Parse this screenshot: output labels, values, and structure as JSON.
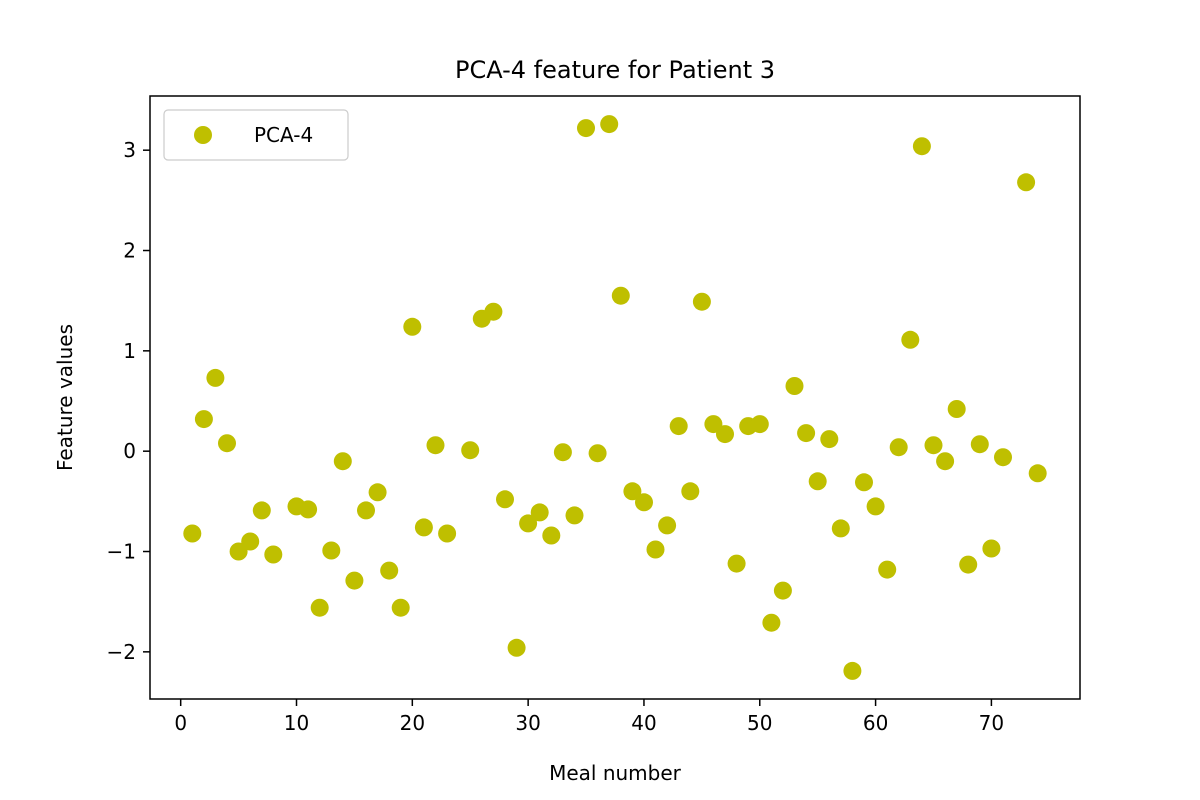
{
  "chart_data": {
    "type": "scatter",
    "title": "PCA-4 feature for Patient 3",
    "xlabel": "Meal number",
    "ylabel": "Feature values",
    "xlim": [
      -2.65,
      77.65
    ],
    "ylim": [
      -2.47,
      3.54
    ],
    "xticks": [
      0,
      10,
      20,
      30,
      40,
      50,
      60,
      70
    ],
    "yticks": [
      -2,
      -1,
      0,
      1,
      2,
      3
    ],
    "ytick_labels": [
      "−2",
      "−1",
      "0",
      "1",
      "2",
      "3"
    ],
    "grid": false,
    "legend_position": "upper-left",
    "series": [
      {
        "name": "PCA-4",
        "color": "#bfbf00",
        "x": [
          1,
          2,
          3,
          4,
          5,
          6,
          7,
          8,
          10,
          11,
          12,
          13,
          14,
          15,
          16,
          17,
          18,
          19,
          20,
          21,
          22,
          23,
          25,
          26,
          27,
          28,
          29,
          30,
          31,
          32,
          33,
          34,
          35,
          36,
          37,
          38,
          39,
          40,
          41,
          42,
          43,
          44,
          45,
          46,
          47,
          48,
          49,
          50,
          51,
          52,
          53,
          54,
          55,
          56,
          57,
          58,
          59,
          60,
          61,
          62,
          63,
          64,
          65,
          66,
          67,
          68,
          69,
          70,
          71,
          73,
          74
        ],
        "y": [
          -0.82,
          0.32,
          0.73,
          0.08,
          -1.0,
          -0.9,
          -0.59,
          -1.03,
          -0.55,
          -0.58,
          -1.56,
          -0.99,
          -0.1,
          -1.29,
          -0.59,
          -0.41,
          -1.19,
          -1.56,
          1.24,
          -0.76,
          0.06,
          -0.82,
          0.01,
          1.32,
          1.39,
          -0.48,
          -1.96,
          -0.72,
          -0.61,
          -0.84,
          -0.01,
          -0.64,
          3.22,
          -0.02,
          3.26,
          1.55,
          -0.4,
          -0.51,
          -0.98,
          -0.74,
          0.25,
          -0.4,
          1.49,
          0.27,
          0.17,
          -1.12,
          0.25,
          0.27,
          -1.71,
          -1.39,
          0.65,
          0.18,
          -0.3,
          0.12,
          -0.77,
          -2.19,
          -0.31,
          -0.55,
          -1.18,
          0.04,
          1.11,
          3.04,
          0.06,
          -0.1,
          0.42,
          -1.13,
          0.07,
          -0.97,
          -0.06,
          2.68,
          -0.22
        ]
      }
    ]
  }
}
